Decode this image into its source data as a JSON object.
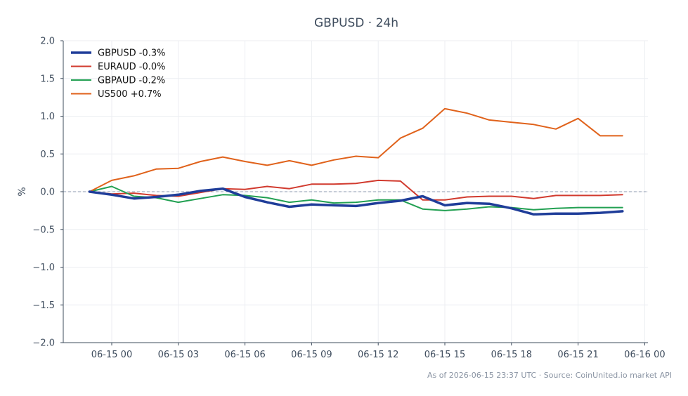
{
  "chart_data": {
    "type": "line",
    "title": "GBPUSD · 24h",
    "xlabel": "",
    "ylabel": "%",
    "ylim": [
      -2.0,
      2.0
    ],
    "yticks": [
      2.0,
      1.5,
      1.0,
      0.5,
      0.0,
      -0.5,
      -1.0,
      -1.5,
      -2.0
    ],
    "ytick_labels": [
      "2.0",
      "1.5",
      "1.0",
      "0.5",
      "0.0",
      "−0.5",
      "−1.0",
      "−1.5",
      "−2.0"
    ],
    "xlim": [
      -1.05,
      24.2
    ],
    "xticks": [
      0,
      3,
      6,
      9,
      12,
      15,
      18,
      21,
      24
    ],
    "xtick_labels": [
      "06-15 00",
      "06-15 03",
      "06-15 06",
      "06-15 09",
      "06-15 12",
      "06-15 15",
      "06-15 18",
      "06-15 21",
      "06-16 00"
    ],
    "grid": true,
    "reference_line": 0.0,
    "legend_position": "top-left",
    "x": [
      -1,
      0,
      1,
      2,
      3,
      4,
      5,
      6,
      7,
      8,
      9,
      10,
      11,
      12,
      13,
      14,
      15,
      16,
      17,
      18,
      19,
      20,
      21,
      22,
      23
    ],
    "series": [
      {
        "name": "GBPUSD -0.3%",
        "color": "#1f3d99",
        "emphasis": true,
        "values": [
          0.0,
          -0.04,
          -0.09,
          -0.07,
          -0.04,
          0.01,
          0.04,
          -0.07,
          -0.14,
          -0.2,
          -0.17,
          -0.18,
          -0.19,
          -0.15,
          -0.12,
          -0.06,
          -0.18,
          -0.15,
          -0.16,
          -0.22,
          -0.3,
          -0.29,
          -0.29,
          -0.28,
          -0.26
        ]
      },
      {
        "name": "EURAUD -0.0%",
        "color": "#d13a2e",
        "emphasis": false,
        "values": [
          0.0,
          -0.03,
          -0.02,
          -0.05,
          -0.06,
          -0.01,
          0.04,
          0.03,
          0.07,
          0.04,
          0.1,
          0.1,
          0.11,
          0.15,
          0.14,
          -0.11,
          -0.11,
          -0.07,
          -0.06,
          -0.06,
          -0.09,
          -0.05,
          -0.05,
          -0.05,
          -0.04
        ]
      },
      {
        "name": "GBPAUD -0.2%",
        "color": "#22a052",
        "emphasis": false,
        "values": [
          0.0,
          0.07,
          -0.06,
          -0.08,
          -0.14,
          -0.09,
          -0.04,
          -0.05,
          -0.08,
          -0.14,
          -0.11,
          -0.15,
          -0.14,
          -0.11,
          -0.11,
          -0.23,
          -0.25,
          -0.23,
          -0.2,
          -0.21,
          -0.24,
          -0.22,
          -0.21,
          -0.21,
          -0.21
        ]
      },
      {
        "name": "US500 +0.7%",
        "color": "#e0621b",
        "emphasis": false,
        "values": [
          0.0,
          0.15,
          0.21,
          0.3,
          0.31,
          0.4,
          0.46,
          0.4,
          0.35,
          0.41,
          0.35,
          0.42,
          0.47,
          0.45,
          0.71,
          0.84,
          1.1,
          1.04,
          0.95,
          0.92,
          0.89,
          0.83,
          0.97,
          0.74,
          0.74
        ]
      }
    ]
  },
  "footer": "As of 2026-06-15 23:37 UTC · Source: CoinUnited.io market API"
}
